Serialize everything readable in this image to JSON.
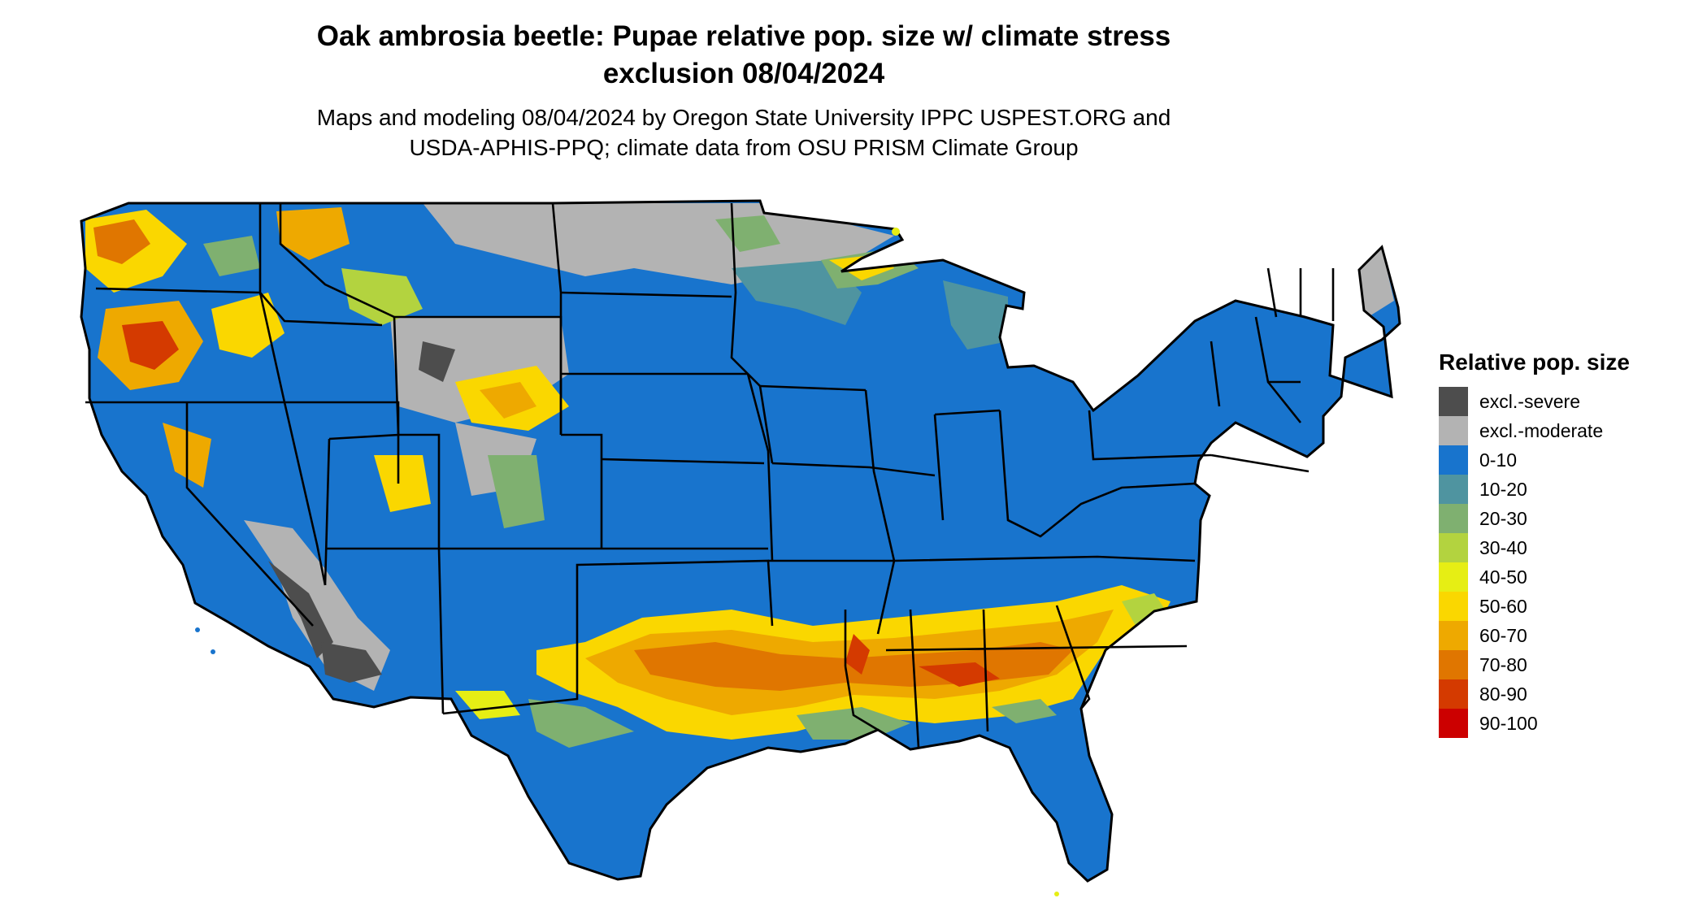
{
  "title": {
    "line1": "Oak ambrosia beetle: Pupae relative pop. size w/ climate stress",
    "line2": "exclusion 08/04/2024"
  },
  "subtitle": {
    "line1": "Maps and modeling 08/04/2024 by Oregon State University IPPC USPEST.ORG and",
    "line2": "USDA-APHIS-PPQ; climate data from OSU PRISM Climate Group"
  },
  "legend": {
    "title": "Relative pop. size",
    "items": [
      {
        "label": "excl.-severe",
        "color": "#4d4d4d"
      },
      {
        "label": "excl.-moderate",
        "color": "#b3b3b3"
      },
      {
        "label": "0-10",
        "color": "#1874cd"
      },
      {
        "label": "10-20",
        "color": "#4f94a0"
      },
      {
        "label": "20-30",
        "color": "#7fb070"
      },
      {
        "label": "30-40",
        "color": "#b3d33f"
      },
      {
        "label": "40-50",
        "color": "#e6ee14"
      },
      {
        "label": "50-60",
        "color": "#fad700"
      },
      {
        "label": "60-70",
        "color": "#eea900"
      },
      {
        "label": "70-80",
        "color": "#e07600"
      },
      {
        "label": "80-90",
        "color": "#d43a00"
      },
      {
        "label": "90-100",
        "color": "#cc0000"
      }
    ]
  },
  "map": {
    "region": "Contiguous United States",
    "colors": {
      "base": "#1874cd",
      "excl_moderate": "#b3b3b3",
      "excl_severe": "#4d4d4d",
      "green": "#7fb070",
      "teal": "#4f94a0",
      "yellow": "#fad700",
      "orange": "#eea900",
      "darkorange": "#e07600",
      "red": "#d43a00",
      "border": "#000000"
    }
  }
}
